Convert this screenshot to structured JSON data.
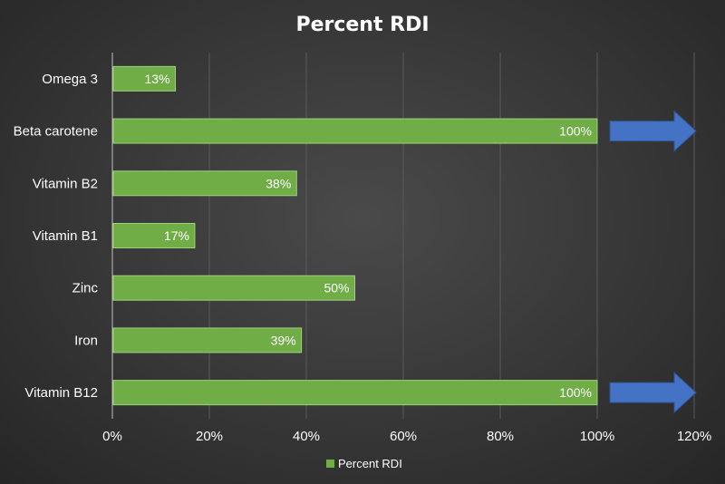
{
  "chart_data": {
    "type": "bar",
    "orientation": "horizontal",
    "title": "Percent RDI",
    "categories": [
      "Omega 3",
      "Beta carotene",
      "Vitamin B2",
      "Vitamin B1",
      "Zinc",
      "Iron",
      "Vitamin B12"
    ],
    "series": [
      {
        "name": "Percent RDI",
        "values": [
          13,
          100,
          38,
          17,
          50,
          39,
          100
        ]
      }
    ],
    "data_labels": [
      "13%",
      "100%",
      "38%",
      "17%",
      "50%",
      "39%",
      "100%"
    ],
    "xlim": [
      0,
      120
    ],
    "x_ticks": [
      0,
      20,
      40,
      60,
      80,
      100,
      120
    ],
    "x_tick_labels": [
      "0%",
      "20%",
      "40%",
      "60%",
      "80%",
      "100%",
      "120%"
    ],
    "gridlines": true,
    "legend": {
      "position": "bottom",
      "entries": [
        "Percent RDI"
      ]
    },
    "annotations": [
      {
        "type": "arrow",
        "category": "Beta carotene",
        "direction": "right",
        "color": "#4472c4"
      },
      {
        "type": "arrow",
        "category": "Vitamin B12",
        "direction": "right",
        "color": "#4472c4"
      }
    ],
    "colors": {
      "bar": "#70ad47",
      "bar_edge": "#9fd07a",
      "arrow": "#4472c4",
      "grid": "#5a5a5a",
      "axis": "#bfbfbf"
    }
  }
}
